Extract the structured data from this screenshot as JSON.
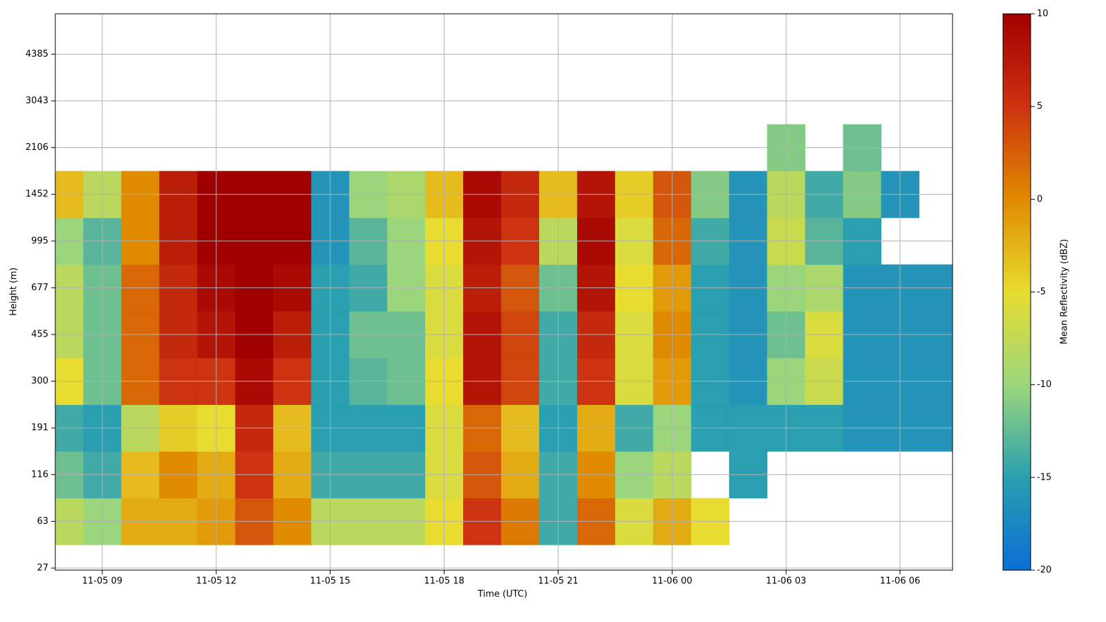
{
  "chart_data": {
    "type": "heatmap",
    "xlabel": "Time (UTC)",
    "ylabel": "Height (m)",
    "colorbar_label": "Mean Reflectivity (dBZ)",
    "x": [
      "11-05 08",
      "11-05 09",
      "11-05 10",
      "11-05 11",
      "11-05 12",
      "11-05 13",
      "11-05 14",
      "11-05 15",
      "11-05 16",
      "11-05 17",
      "11-05 18",
      "11-05 19",
      "11-05 20",
      "11-05 21",
      "11-05 22",
      "11-05 23",
      "11-06 00",
      "11-06 01",
      "11-06 02",
      "11-06 03",
      "11-06 04",
      "11-06 05",
      "11-06 06",
      "11-06 07"
    ],
    "xlim": [
      "11-05 08",
      "11-06 07"
    ],
    "xticks": [
      "11-05 09",
      "11-05 12",
      "11-05 15",
      "11-05 18",
      "11-05 21",
      "11-06 00",
      "11-06 03",
      "11-06 06"
    ],
    "y": [
      27,
      63,
      116,
      191,
      300,
      455,
      677,
      995,
      1452,
      2106,
      3043,
      4385
    ],
    "values": [
      [
        null,
        null,
        null,
        null,
        null,
        null,
        null,
        null,
        null,
        null,
        null,
        null,
        null,
        null,
        null,
        null,
        null,
        null,
        null,
        null,
        null,
        null,
        null,
        null
      ],
      [
        -8,
        -10,
        -2,
        -2,
        -1,
        3,
        0,
        -8,
        -8,
        -8,
        -5,
        5,
        1,
        -14,
        2,
        -6,
        -2,
        -5,
        null,
        null,
        null,
        null,
        null,
        null
      ],
      [
        -12,
        -14,
        -3,
        0,
        -2,
        5,
        -2,
        -14,
        -14,
        -14,
        -6,
        3,
        -2,
        -14,
        0,
        -10,
        -8,
        null,
        -15,
        null,
        null,
        null,
        null,
        null
      ],
      [
        -14,
        -15,
        -8,
        -4,
        -5,
        6,
        -3,
        -15,
        -15,
        -15,
        -6,
        2,
        -3,
        -15,
        -2,
        -14,
        -10,
        -15,
        -15,
        -15,
        -15,
        -16,
        -16,
        -16
      ],
      [
        -5,
        -12,
        2,
        5,
        5,
        9,
        5,
        -15,
        -13,
        -12,
        -5,
        8,
        4,
        -14,
        5,
        -6,
        -1,
        -15,
        -16,
        -10,
        -7,
        -16,
        -16,
        -16
      ],
      [
        -8,
        -12,
        2,
        6,
        8,
        10,
        7,
        -15,
        -12,
        -12,
        -6,
        8,
        4,
        -14,
        6,
        -6,
        0,
        -15,
        -16,
        -12,
        -6,
        -16,
        -16,
        -16
      ],
      [
        -8,
        -12,
        2,
        6,
        9,
        10,
        9,
        -15,
        -14,
        -10,
        -6,
        7,
        3,
        -12,
        8,
        -5,
        -1,
        -15,
        -16,
        -10,
        -9,
        -16,
        -16,
        -16
      ],
      [
        -10,
        -13,
        0,
        7,
        10,
        10,
        10,
        -16,
        -13,
        -10,
        -5,
        8,
        5,
        -8,
        9,
        -6,
        2,
        -14,
        -16,
        -7,
        -13,
        -15,
        null,
        null
      ],
      [
        -3,
        -8,
        0,
        7,
        10,
        10,
        10,
        -16,
        -10,
        -9,
        -3,
        9,
        6,
        -3,
        8,
        -4,
        3,
        -11,
        -16,
        -8,
        -14,
        -11,
        -16,
        null
      ],
      [
        null,
        null,
        null,
        null,
        null,
        null,
        null,
        null,
        null,
        null,
        null,
        null,
        null,
        null,
        null,
        null,
        null,
        null,
        null,
        -11,
        null,
        -12,
        null,
        null
      ],
      [
        null,
        null,
        null,
        null,
        null,
        null,
        null,
        null,
        null,
        null,
        null,
        null,
        null,
        null,
        null,
        null,
        null,
        null,
        null,
        null,
        null,
        null,
        null,
        null
      ],
      [
        null,
        null,
        null,
        null,
        null,
        null,
        null,
        null,
        null,
        null,
        null,
        null,
        null,
        null,
        null,
        null,
        null,
        null,
        null,
        null,
        null,
        null,
        null,
        null
      ]
    ],
    "zlim": [
      -20,
      10
    ],
    "zticks": [
      -20,
      -15,
      -10,
      -5,
      0,
      5,
      10
    ],
    "colorscale": [
      "#0a6fd6",
      "#2a9fb0",
      "#9cd67c",
      "#e8dc30",
      "#e08a00",
      "#cc3310",
      "#a00000"
    ],
    "grid": true
  }
}
